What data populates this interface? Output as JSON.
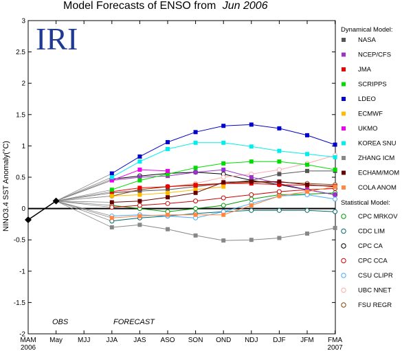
{
  "chart_data": {
    "type": "line",
    "title_prefix": "Model Forecasts of ENSO from",
    "title_date": "Jun 2006",
    "logo_text": "IRI",
    "ylabel": "NINO3.4 SST Anomaly(°C)",
    "ylim": [
      -2,
      3
    ],
    "yticks": [
      -2,
      -1.5,
      -1,
      -0.5,
      0,
      0.5,
      1,
      1.5,
      2,
      2.5,
      3
    ],
    "categories": [
      "MAM",
      "May",
      "MJJ",
      "JJA",
      "JAS",
      "ASO",
      "SON",
      "OND",
      "NDJ",
      "DJF",
      "JFM",
      "FMA"
    ],
    "year_labels": [
      {
        "index": 0,
        "text": "2006"
      },
      {
        "index": 11,
        "text": "2007"
      }
    ],
    "phase_labels": {
      "obs": "OBS",
      "forecast": "FORECAST"
    },
    "observed": {
      "x_index": [
        0,
        1
      ],
      "values": [
        -0.18,
        0.12
      ],
      "color": "#000000"
    },
    "dynamical_title": "Dynamical Model:",
    "statistical_title": "Statistical Model:",
    "dynamical_series": [
      {
        "name": "NASA",
        "color": "#555555",
        "values": [
          0.25,
          0.28,
          0.3,
          0.35,
          0.4,
          0.45,
          0.55,
          0.6,
          0.6
        ]
      },
      {
        "name": "NCEP/CFS",
        "color": "#9933cc",
        "values": [
          0.45,
          0.5,
          0.52,
          0.58,
          0.62,
          0.5,
          0.4,
          0.3,
          0.22
        ]
      },
      {
        "name": "JMA",
        "color": "#ee0000",
        "values": [
          0.27,
          0.33,
          0.35,
          0.37,
          0.4,
          0.4,
          0.38,
          0.37,
          0.36
        ]
      },
      {
        "name": "SCRIPPS",
        "color": "#00dd00",
        "values": [
          0.3,
          0.45,
          0.55,
          0.65,
          0.72,
          0.75,
          0.75,
          0.7,
          0.62
        ]
      },
      {
        "name": "LDEO",
        "color": "#0000cc",
        "values": [
          0.56,
          0.83,
          1.06,
          1.22,
          1.32,
          1.34,
          1.28,
          1.17,
          1.02
        ]
      },
      {
        "name": "ECMWF",
        "color": "#ffbb00",
        "values": [
          0.2,
          0.22,
          0.25,
          0.3,
          0.35
        ]
      },
      {
        "name": "UKMO",
        "color": "#ee00ee",
        "values": [
          0.45,
          0.62,
          0.6
        ]
      },
      {
        "name": "KOREA SNU",
        "color": "#00eeee",
        "values": [
          0.5,
          0.75,
          0.95,
          1.05,
          1.05,
          0.99,
          0.92,
          0.87,
          0.82
        ]
      },
      {
        "name": "ZHANG ICM",
        "color": "#888888",
        "values": [
          -0.3,
          -0.26,
          -0.33,
          -0.43,
          -0.51,
          -0.5,
          -0.47,
          -0.4,
          -0.31
        ]
      },
      {
        "name": "ECHAM/MOM",
        "color": "#660000",
        "values": [
          0.1,
          0.12,
          0.18,
          0.25,
          0.42,
          0.43,
          0.43,
          0.38,
          0.35
        ]
      },
      {
        "name": "COLA ANOM",
        "color": "#ff8844",
        "values": [
          -0.15,
          -0.12,
          -0.1,
          -0.1,
          -0.1,
          0.05,
          0.2,
          0.27,
          0.35
        ]
      }
    ],
    "statistical_series": [
      {
        "name": "CPC MRKOV",
        "color": "#009900",
        "values": [
          0.05,
          0.0,
          -0.05,
          0.0,
          0.05,
          0.15,
          0.22,
          0.23,
          0.25
        ]
      },
      {
        "name": "CDC LIM",
        "color": "#006666",
        "values": [
          -0.2,
          -0.15,
          -0.12,
          -0.08,
          -0.05,
          -0.03,
          -0.03,
          -0.03,
          -0.05
        ]
      },
      {
        "name": "CPC CA",
        "color": "#000000",
        "values": [
          0.47,
          0.52,
          0.56,
          0.58,
          0.55,
          0.45,
          0.38,
          0.3,
          0.22
        ]
      },
      {
        "name": "CPC CCA",
        "color": "#cc0000",
        "values": [
          0.02,
          0.05,
          0.08,
          0.12,
          0.17,
          0.22,
          0.27,
          0.3,
          0.32
        ]
      },
      {
        "name": "CSU CLIPR",
        "color": "#44aaff",
        "values": [
          -0.12,
          -0.1,
          -0.12,
          -0.15,
          -0.05,
          0.08,
          0.2,
          0.22,
          0.15
        ]
      },
      {
        "name": "UBC NNET",
        "color": "#ffaaaa",
        "values": [
          0.25,
          0.3,
          0.35,
          0.4,
          0.5,
          0.55,
          0.62,
          0.72,
          0.85
        ]
      },
      {
        "name": "FSU REGR",
        "color": "#884400",
        "values": [
          0.2,
          0.3,
          0.35,
          0.38,
          0.4,
          0.42,
          0.42,
          0.4,
          0.38
        ]
      }
    ]
  }
}
